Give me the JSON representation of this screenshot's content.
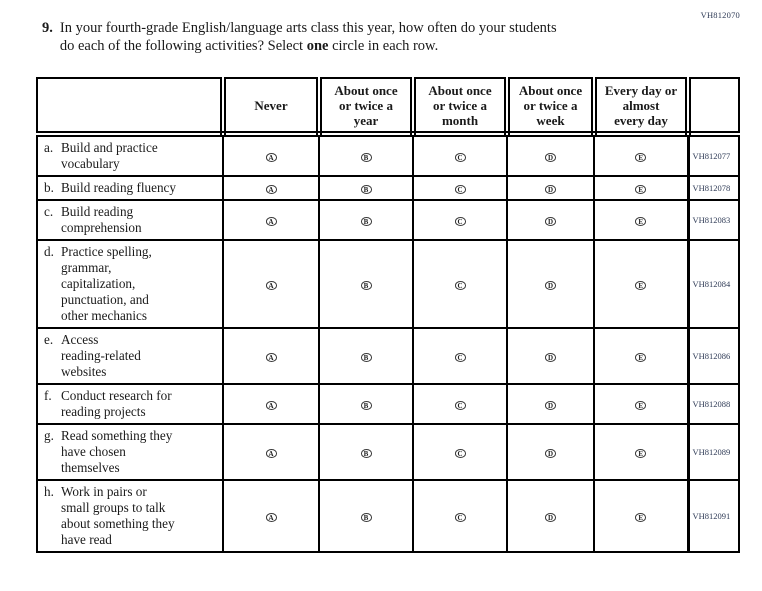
{
  "colors": {
    "ink": "#1a1a1a",
    "table_border": "#000000",
    "code_text": "#2e3a55"
  },
  "page_code": "VH812070",
  "question": {
    "number": "9.",
    "line1": "In your fourth-grade English/language arts class this year, how often do your students",
    "line2_pre": "do each of the following activities? Select ",
    "line2_bold": "one",
    "line2_post": " circle in each row."
  },
  "table": {
    "option_headers": [
      "Never",
      "About once\nor twice a\nyear",
      "About once\nor twice a\nmonth",
      "About once\nor twice a\nweek",
      "Every day or\nalmost\nevery day"
    ],
    "option_letters": [
      "A",
      "B",
      "C",
      "D",
      "E"
    ],
    "rows": [
      {
        "letter": "a.",
        "label": "Build and practice\nvocabulary",
        "code": "VH812077"
      },
      {
        "letter": "b.",
        "label": "Build reading fluency",
        "code": "VH812078"
      },
      {
        "letter": "c.",
        "label": "Build reading\ncomprehension",
        "code": "VH812083"
      },
      {
        "letter": "d.",
        "label": "Practice spelling,\ngrammar,\ncapitalization,\npunctuation, and\nother mechanics",
        "code": "VH812084"
      },
      {
        "letter": "e.",
        "label": "Access\nreading-related\nwebsites",
        "code": "VH812086"
      },
      {
        "letter": "f.",
        "label": "Conduct research for\nreading projects",
        "code": "VH812088"
      },
      {
        "letter": "g.",
        "label": "Read something they\nhave chosen\nthemselves",
        "code": "VH812089"
      },
      {
        "letter": "h.",
        "label": "Work in pairs or\nsmall groups to talk\nabout something they\nhave read",
        "code": "VH812091"
      }
    ]
  }
}
